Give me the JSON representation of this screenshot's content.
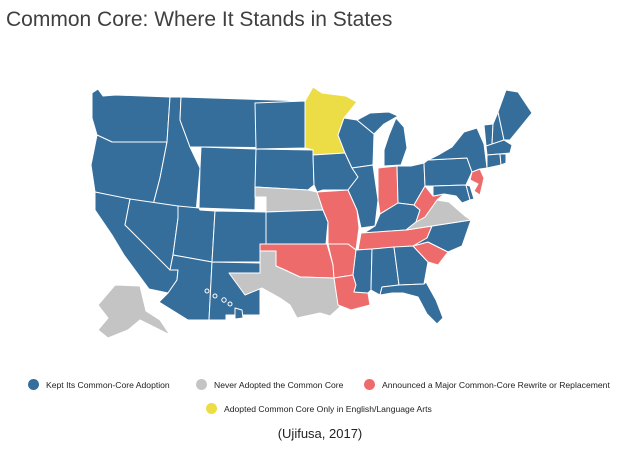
{
  "title": "Common Core: Where It Stands in States",
  "legend": [
    {
      "id": "kept",
      "label": "Kept Its Common-Core Adoption",
      "color": "#356d9b"
    },
    {
      "id": "never",
      "label": "Never Adopted the Common Core",
      "color": "#c4c4c4"
    },
    {
      "id": "rewrite",
      "label": "Announced a Major Common-Core Rewrite or Replacement",
      "color": "#ee6b6b"
    },
    {
      "id": "ela_only",
      "label": "Adopted Common Core Only in English/Language Arts",
      "color": "#ecdd47"
    }
  ],
  "colors": {
    "kept": "#356d9b",
    "never": "#c4c4c4",
    "rewrite": "#ee6b6b",
    "ela_only": "#ecdd47"
  },
  "states": [
    {
      "abbr": "WA",
      "status": "kept"
    },
    {
      "abbr": "OR",
      "status": "kept"
    },
    {
      "abbr": "CA",
      "status": "kept"
    },
    {
      "abbr": "ID",
      "status": "kept"
    },
    {
      "abbr": "NV",
      "status": "kept"
    },
    {
      "abbr": "MT",
      "status": "kept"
    },
    {
      "abbr": "WY",
      "status": "kept"
    },
    {
      "abbr": "UT",
      "status": "kept"
    },
    {
      "abbr": "AZ",
      "status": "kept"
    },
    {
      "abbr": "CO",
      "status": "kept"
    },
    {
      "abbr": "NM",
      "status": "kept"
    },
    {
      "abbr": "ND",
      "status": "kept"
    },
    {
      "abbr": "SD",
      "status": "kept"
    },
    {
      "abbr": "NE",
      "status": "never"
    },
    {
      "abbr": "KS",
      "status": "kept"
    },
    {
      "abbr": "OK",
      "status": "rewrite"
    },
    {
      "abbr": "TX",
      "status": "never"
    },
    {
      "abbr": "MN",
      "status": "ela_only"
    },
    {
      "abbr": "IA",
      "status": "kept"
    },
    {
      "abbr": "MO",
      "status": "rewrite"
    },
    {
      "abbr": "AR",
      "status": "rewrite"
    },
    {
      "abbr": "LA",
      "status": "rewrite"
    },
    {
      "abbr": "WI",
      "status": "kept"
    },
    {
      "abbr": "IL",
      "status": "kept"
    },
    {
      "abbr": "MI",
      "status": "kept"
    },
    {
      "abbr": "IN",
      "status": "rewrite"
    },
    {
      "abbr": "OH",
      "status": "kept"
    },
    {
      "abbr": "KY",
      "status": "kept"
    },
    {
      "abbr": "TN",
      "status": "rewrite"
    },
    {
      "abbr": "MS",
      "status": "kept"
    },
    {
      "abbr": "AL",
      "status": "kept"
    },
    {
      "abbr": "GA",
      "status": "kept"
    },
    {
      "abbr": "FL",
      "status": "kept"
    },
    {
      "abbr": "SC",
      "status": "rewrite"
    },
    {
      "abbr": "NC",
      "status": "kept"
    },
    {
      "abbr": "VA",
      "status": "never"
    },
    {
      "abbr": "WV",
      "status": "rewrite"
    },
    {
      "abbr": "PA",
      "status": "kept"
    },
    {
      "abbr": "NY",
      "status": "kept"
    },
    {
      "abbr": "NJ",
      "status": "rewrite"
    },
    {
      "abbr": "DE",
      "status": "kept"
    },
    {
      "abbr": "MD",
      "status": "kept"
    },
    {
      "abbr": "CT",
      "status": "kept"
    },
    {
      "abbr": "RI",
      "status": "kept"
    },
    {
      "abbr": "MA",
      "status": "kept"
    },
    {
      "abbr": "VT",
      "status": "kept"
    },
    {
      "abbr": "NH",
      "status": "kept"
    },
    {
      "abbr": "ME",
      "status": "kept"
    },
    {
      "abbr": "AK",
      "status": "never"
    },
    {
      "abbr": "HI",
      "status": "kept"
    }
  ],
  "citation": "(Ujifusa, 2017)"
}
